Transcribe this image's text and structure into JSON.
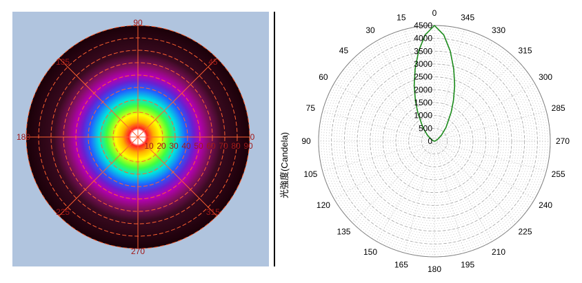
{
  "chart_data": [
    {
      "type": "heatmap",
      "polar": true,
      "angle_labels": [
        "90",
        "45",
        "0",
        "315",
        "270",
        "225",
        "180",
        "135"
      ],
      "angle_label_values": [
        90,
        45,
        0,
        315,
        270,
        225,
        180,
        135
      ],
      "radial_labels": [
        "10",
        "20",
        "30",
        "40",
        "50",
        "60",
        "70",
        "80",
        "90"
      ],
      "radial_max": 90,
      "colormap": [
        "#ffffff",
        "#ff2020",
        "#ffb000",
        "#ffff00",
        "#40ff40",
        "#00e0e0",
        "#2060ff",
        "#6a20d0",
        "#b400b4",
        "#801060",
        "#3a0a20",
        "#1a0008"
      ],
      "colors": {
        "background": "#b0c4de",
        "grid": "#ff6030",
        "label": "#a01818"
      }
    },
    {
      "type": "line",
      "polar": true,
      "ylabel": "光強度(Candela)",
      "angle_labels": [
        "0",
        "345",
        "330",
        "315",
        "300",
        "285",
        "270",
        "255",
        "240",
        "225",
        "210",
        "195",
        "180",
        "165",
        "150",
        "135",
        "120",
        "105",
        "90",
        "75",
        "60",
        "45",
        "30",
        "15"
      ],
      "angle_values": [
        0,
        345,
        330,
        315,
        300,
        285,
        270,
        255,
        240,
        225,
        210,
        195,
        180,
        165,
        150,
        135,
        120,
        105,
        90,
        75,
        60,
        45,
        30,
        15
      ],
      "radial_labels": [
        "0",
        "500",
        "1000",
        "1500",
        "2000",
        "2500",
        "3000",
        "3500",
        "4000",
        "4500"
      ],
      "radial_values": [
        0,
        500,
        1000,
        1500,
        2000,
        2500,
        3000,
        3500,
        4000,
        4500
      ],
      "r_max": 4500,
      "series": [
        {
          "color": "#1a8a1a",
          "theta": [
            -90,
            -80,
            -70,
            -60,
            -50,
            -40,
            -30,
            -25,
            -20,
            -15,
            -10,
            -5,
            0,
            5,
            10,
            15,
            20,
            25,
            30,
            40,
            50,
            60,
            70,
            80,
            90
          ],
          "r": [
            0,
            20,
            50,
            150,
            350,
            700,
            1300,
            1750,
            2300,
            2900,
            3550,
            4150,
            4500,
            4150,
            3550,
            2900,
            2300,
            1750,
            1300,
            700,
            350,
            150,
            50,
            20,
            0
          ]
        }
      ],
      "colors": {
        "grid": "#c8c8c8",
        "axis": "#808080"
      }
    }
  ]
}
